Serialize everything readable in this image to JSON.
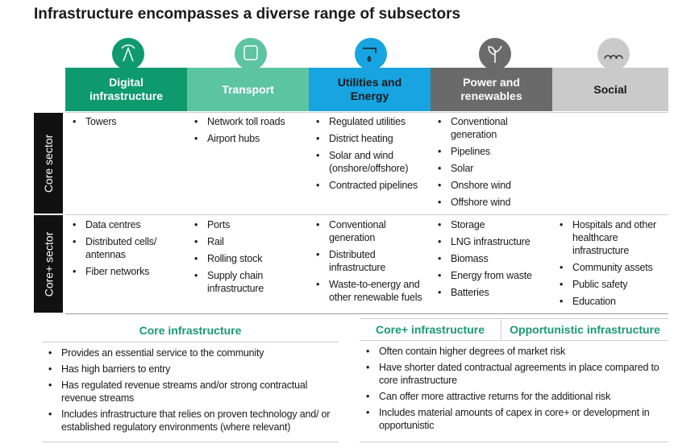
{
  "title": "Infrastructure encompasses a diverse range of subsectors",
  "columns": [
    {
      "label": "Digital infrastructure",
      "color": "#0f9a6e",
      "text_color": "#ffffff"
    },
    {
      "label": "Transport",
      "color": "#5cc4a0",
      "text_color": "#ffffff"
    },
    {
      "label": "Utilities and Energy",
      "color": "#17a4e0",
      "text_color": "#1a1a1a"
    },
    {
      "label": "Power and renewables",
      "color": "#6a6a6a",
      "text_color": "#ffffff"
    },
    {
      "label": "Social",
      "color": "#cacaca",
      "text_color": "#1a1a1a"
    }
  ],
  "rows": [
    {
      "label": "Core sector",
      "cells": [
        [
          "Towers"
        ],
        [
          "Network toll roads",
          "Airport hubs"
        ],
        [
          "Regulated utilities",
          "District heating",
          "Solar and wind (onshore/offshore)",
          "Contracted pipelines"
        ],
        [
          "Conventional generation",
          "Pipelines",
          "Solar",
          "Onshore wind",
          "Offshore wind"
        ],
        []
      ]
    },
    {
      "label": "Core+ sector",
      "cells": [
        [
          "Data centres",
          "Distributed cells/ antennas",
          "Fiber networks"
        ],
        [
          "Ports",
          "Rail",
          "Rolling stock",
          "Supply chain infrastructure"
        ],
        [
          "Conventional generation",
          "Distributed infrastructure",
          "Waste-to-energy and other renewable fuels"
        ],
        [
          "Storage",
          "LNG infrastructure",
          "Biomass",
          "Energy from waste",
          "Batteries"
        ],
        [
          "Hospitals and other healthcare infrastructure",
          "Community assets",
          "Public safety",
          "Education"
        ]
      ]
    }
  ],
  "core": {
    "title": "Core infrastructure",
    "items": [
      "Provides an essential service to the community",
      "Has high barriers to entry",
      "Has regulated revenue streams and/or strong contractual revenue streams",
      "Includes infrastructure that relies on proven technology and/ or established regulatory environments (where relevant)"
    ]
  },
  "core_plus": {
    "titles": [
      "Core+ infrastructure",
      "Opportunistic infrastructure"
    ],
    "items": [
      "Often contain higher degrees of market risk",
      "Have shorter dated contractual agreements in place compared to core infrastructure",
      "Can offer more attractive returns for the additional risk",
      "Includes material amounts of capex in core+ or development in opportunistic"
    ]
  }
}
